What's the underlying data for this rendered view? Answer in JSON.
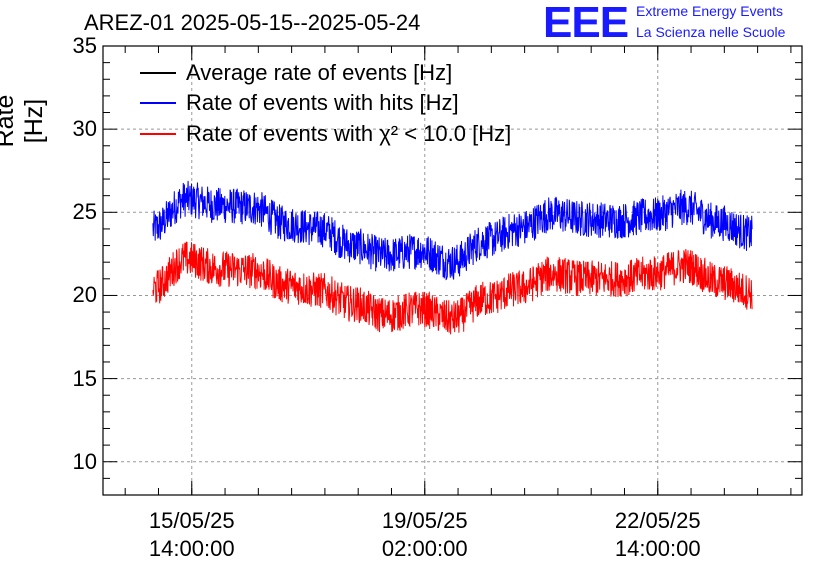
{
  "header": {
    "title": "AREZ-01 2025-05-15--2025-05-24",
    "logo_text": "EEE",
    "logo_line1": "Extreme Energy Events",
    "logo_line2": "La Scienza nelle Scuole",
    "logo_color": "#1a1aff"
  },
  "chart_data": {
    "type": "line",
    "ylabel": "Rate [Hz]",
    "ylim": [
      8,
      35
    ],
    "yticks": [
      "10",
      "15",
      "20",
      "25",
      "30",
      "35"
    ],
    "x_range": [
      "2025-05-14 06:00",
      "2025-05-24 18:00"
    ],
    "xticks": [
      {
        "date": "15/05/25",
        "time": "14:00:00"
      },
      {
        "date": "19/05/25",
        "time": "02:00:00"
      },
      {
        "date": "22/05/25",
        "time": "14:00:00"
      }
    ],
    "grid": true,
    "legend_position": "top-left",
    "series": [
      {
        "name": "Average rate of events [Hz]",
        "color": "#000000",
        "values": []
      },
      {
        "name": "Rate of events with hits [Hz]",
        "color": "#0000ff",
        "x": [
          "2025-05-15 00:00",
          "2025-05-15 12:00",
          "2025-05-16 00:00",
          "2025-05-16 12:00",
          "2025-05-17 00:00",
          "2025-05-17 12:00",
          "2025-05-18 00:00",
          "2025-05-18 12:00",
          "2025-05-19 00:00",
          "2025-05-19 12:00",
          "2025-05-20 00:00",
          "2025-05-20 12:00",
          "2025-05-21 00:00",
          "2025-05-21 12:00",
          "2025-05-22 00:00",
          "2025-05-22 12:00",
          "2025-05-23 00:00",
          "2025-05-23 12:00",
          "2025-05-24 00:00"
        ],
        "values": [
          24.0,
          25.8,
          25.4,
          25.3,
          24.3,
          24.0,
          23.0,
          22.4,
          22.7,
          22.0,
          23.3,
          24.0,
          24.9,
          24.6,
          24.5,
          24.8,
          25.3,
          24.4,
          23.7
        ],
        "noise": 1.1
      },
      {
        "name": "Rate of events with χ² < 10.0 [Hz]",
        "color": "#ff0000",
        "x": [
          "2025-05-15 00:00",
          "2025-05-15 12:00",
          "2025-05-16 00:00",
          "2025-05-16 12:00",
          "2025-05-17 00:00",
          "2025-05-17 12:00",
          "2025-05-18 00:00",
          "2025-05-18 12:00",
          "2025-05-19 00:00",
          "2025-05-19 12:00",
          "2025-05-20 00:00",
          "2025-05-20 12:00",
          "2025-05-21 00:00",
          "2025-05-21 12:00",
          "2025-05-22 00:00",
          "2025-05-22 12:00",
          "2025-05-23 00:00",
          "2025-05-23 12:00",
          "2025-05-24 00:00"
        ],
        "values": [
          20.4,
          22.2,
          21.6,
          21.5,
          20.6,
          20.3,
          19.5,
          18.8,
          19.2,
          18.6,
          19.8,
          20.4,
          21.3,
          21.0,
          21.0,
          21.3,
          21.8,
          20.8,
          20.2
        ],
        "noise": 1.1
      }
    ]
  }
}
